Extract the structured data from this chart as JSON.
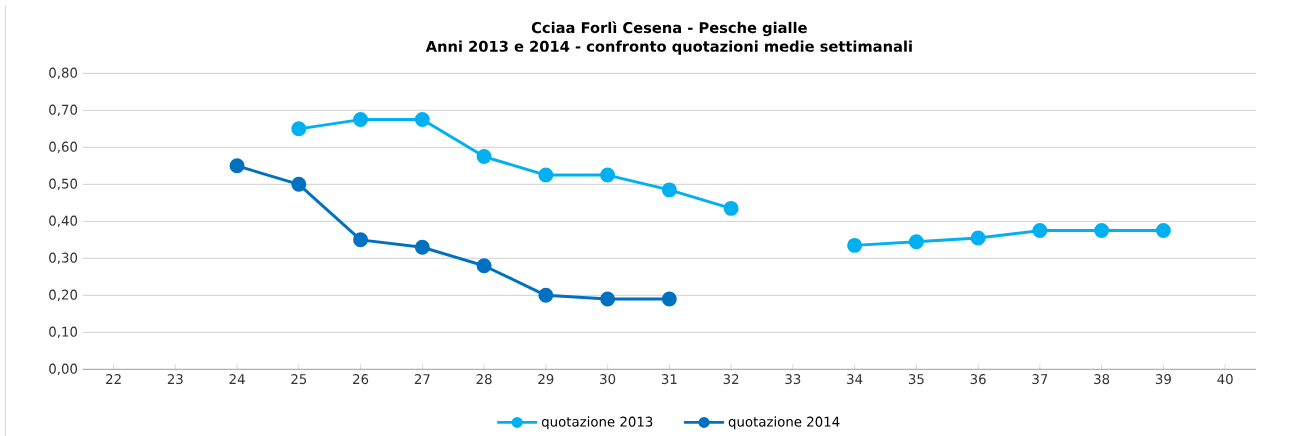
{
  "chart_data": {
    "type": "line",
    "title": "Cciaa Forlì Cesena - Pesche gialle",
    "subtitle": "Anni 2013 e 2014 - confronto quotazioni medie settimanali",
    "categories": [
      "22",
      "23",
      "24",
      "25",
      "26",
      "27",
      "28",
      "29",
      "30",
      "31",
      "32",
      "33",
      "34",
      "35",
      "36",
      "37",
      "38",
      "39",
      "40"
    ],
    "series": [
      {
        "name": "quotazione 2013",
        "color": "#00b0f0",
        "values": [
          null,
          null,
          null,
          0.65,
          0.675,
          0.675,
          0.575,
          0.525,
          0.525,
          0.485,
          0.435,
          null,
          0.335,
          0.345,
          0.355,
          0.375,
          0.375,
          0.375,
          null
        ]
      },
      {
        "name": "quotazione 2014",
        "color": "#0070c0",
        "values": [
          null,
          null,
          0.55,
          0.5,
          0.35,
          0.33,
          0.28,
          0.2,
          0.19,
          0.19,
          null,
          null,
          null,
          null,
          null,
          null,
          null,
          null,
          null
        ]
      }
    ],
    "ylim": [
      0,
      0.8
    ],
    "yticks": [
      {
        "value": 0,
        "label": "0,00"
      },
      {
        "value": 0.1,
        "label": "0,10"
      },
      {
        "value": 0.2,
        "label": "0,20"
      },
      {
        "value": 0.3,
        "label": "0,30"
      },
      {
        "value": 0.4,
        "label": "0,40"
      },
      {
        "value": 0.5,
        "label": "0,50"
      },
      {
        "value": 0.6,
        "label": "0,60"
      },
      {
        "value": 0.7,
        "label": "0,70"
      },
      {
        "value": 0.8,
        "label": "0,80"
      }
    ],
    "grid": "y",
    "legend": "bottom",
    "marker": "circle",
    "line_style": "solid"
  }
}
